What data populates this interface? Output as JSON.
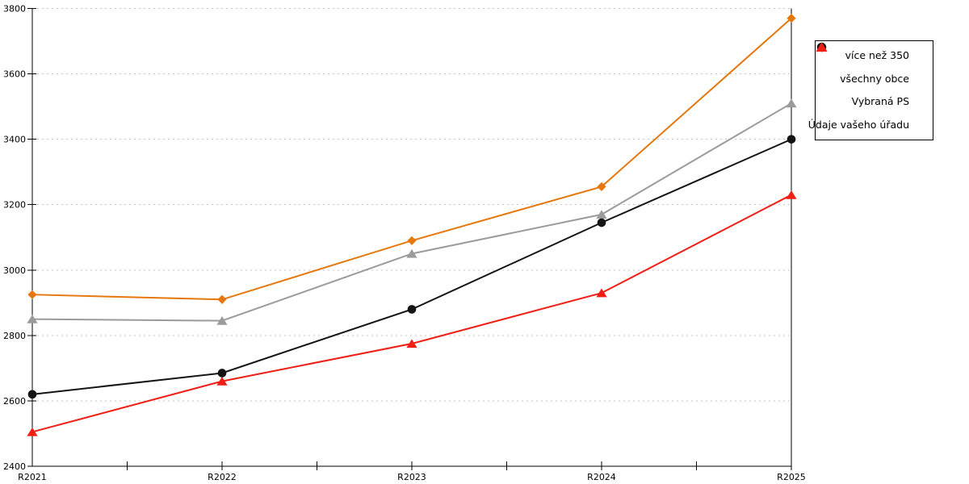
{
  "chart_data": {
    "type": "line",
    "title": "",
    "xlabel": "",
    "ylabel": "",
    "categories": [
      "R2021",
      "R2022",
      "R2023",
      "R2024",
      "R2025"
    ],
    "series": [
      {
        "name": "více než 350",
        "color": "#E5770D",
        "marker": "diamond",
        "values": [
          2925,
          2910,
          3090,
          3255,
          3770
        ]
      },
      {
        "name": "všechny obce",
        "color": "#141414",
        "marker": "circle",
        "values": [
          2620,
          2685,
          2880,
          3145,
          3400
        ]
      },
      {
        "name": "Vybraná PS",
        "color": "#9B9B9B",
        "marker": "triangle",
        "values": [
          2850,
          2845,
          3050,
          3170,
          3510
        ]
      },
      {
        "name": "Údaje vašeho úřadu",
        "color": "#F01E14",
        "marker": "triangle",
        "values": [
          2505,
          2660,
          2775,
          2930,
          3230
        ]
      }
    ],
    "ylim": [
      2400,
      3800
    ],
    "yticks": [
      2400,
      2600,
      2800,
      3000,
      3200,
      3400,
      3600,
      3800
    ],
    "grid": "horizontal-dotted",
    "legend_position": "top-right",
    "colors": {
      "axis": "#000000",
      "grid": "#C4C4C4",
      "background": "#FFFFFF",
      "tick_label": "#000000"
    }
  }
}
